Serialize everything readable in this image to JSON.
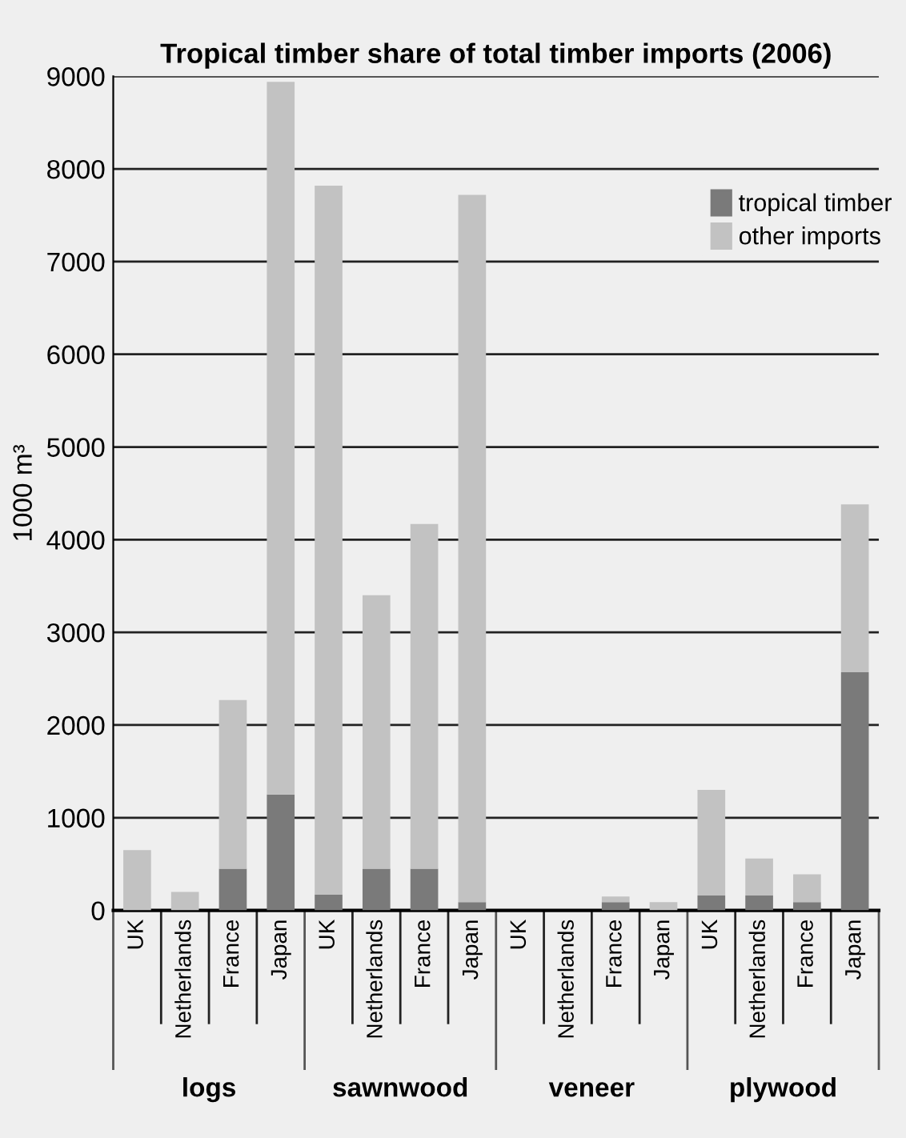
{
  "chart_data": {
    "type": "bar",
    "title": "Tropical timber share of total timber imports (2006)",
    "ylabel": "1000 m³",
    "categories": [
      "UK",
      "Netherlands",
      "France",
      "Japan",
      "UK",
      "Netherlands",
      "France",
      "Japan",
      "UK",
      "Netherlands",
      "France",
      "Japan",
      "UK",
      "Netherlands",
      "France",
      "Japan"
    ],
    "series": [
      {
        "name": "tropical timber",
        "color": "#7a7a7a",
        "values": [
          0,
          0,
          450,
          1250,
          170,
          450,
          450,
          90,
          0,
          0,
          90,
          0,
          160,
          160,
          90,
          2570
        ]
      },
      {
        "name": "other imports",
        "color": "#c2c2c2",
        "values": [
          650,
          200,
          1820,
          7690,
          7650,
          2950,
          3720,
          7630,
          null,
          null,
          60,
          90,
          1140,
          400,
          300,
          1810
        ]
      }
    ],
    "stacked": true,
    "ylim": [
      0,
      9000
    ],
    "yticks": [
      0,
      1000,
      2000,
      3000,
      4000,
      5000,
      6000,
      7000,
      8000,
      9000
    ],
    "grid": "y",
    "legend": "top right",
    "annotations": [
      "logs",
      "sawnwood",
      "veneer",
      "plywood"
    ]
  }
}
